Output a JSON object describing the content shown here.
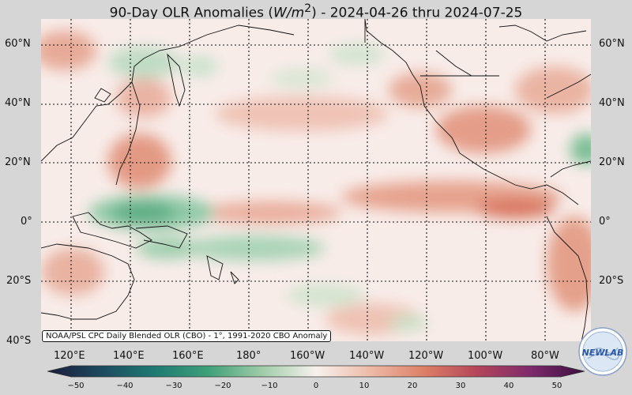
{
  "title": {
    "main": "90-Day OLR Anomalies (",
    "units": "W/m",
    "sup": "2",
    "rest": ") - 2024-04-26 thru 2024-07-25"
  },
  "lat_labels": [
    "60°N",
    "40°N",
    "20°N",
    "0°",
    "20°S",
    "40°S"
  ],
  "lon_labels": [
    "120°E",
    "140°E",
    "160°E",
    "180°",
    "160°W",
    "140°W",
    "120°W",
    "100°W",
    "80°W"
  ],
  "colorbar": {
    "ticks": [
      "−50",
      "−40",
      "−30",
      "−20",
      "−10",
      "0",
      "10",
      "20",
      "30",
      "40",
      "50"
    ],
    "min": -50,
    "max": 50
  },
  "credit": "NOAA/PSL CPC Daily Blended OLR (CBO) - 1°, 1991-2020 CBO Anomaly",
  "logo": {
    "text": "NEWLAB"
  },
  "colors": {
    "negative": "#2f9a6b",
    "positive": "#c8593a",
    "neutral": "#f7ece8"
  }
}
